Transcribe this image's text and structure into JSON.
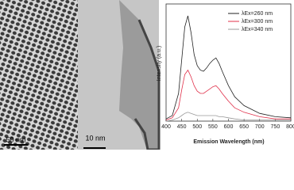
{
  "images": [
    {
      "scale_label": "50 nm"
    },
    {
      "scale_label": "10 nm"
    }
  ],
  "chart_data": {
    "type": "line",
    "xlabel": "Emission Wavelength (nm)",
    "ylabel": "Intensity (a.u.)",
    "x": [
      400,
      420,
      440,
      450,
      460,
      470,
      480,
      490,
      500,
      510,
      520,
      530,
      540,
      550,
      560,
      570,
      580,
      600,
      620,
      650,
      700,
      750,
      800
    ],
    "series": [
      {
        "name": "λEx=260 nm",
        "color": "#222222",
        "values": [
          2,
          5,
          25,
          55,
          85,
          95,
          80,
          60,
          50,
          46,
          45,
          48,
          52,
          55,
          57,
          52,
          45,
          32,
          22,
          14,
          7,
          4,
          3
        ]
      },
      {
        "name": "λEx=300 nm",
        "color": "#e0304a",
        "values": [
          1,
          3,
          12,
          28,
          42,
          46,
          40,
          32,
          27,
          25,
          25,
          27,
          29,
          31,
          32,
          29,
          25,
          18,
          12,
          8,
          4,
          2,
          2
        ]
      },
      {
        "name": "λEx=340 nm",
        "color": "#9a9a9a",
        "values": [
          0,
          1,
          3,
          5,
          7,
          8,
          7,
          6,
          5,
          5,
          5,
          5,
          5,
          5,
          5,
          4,
          4,
          3,
          2,
          1,
          1,
          1,
          1
        ]
      }
    ],
    "xlim": [
      400,
      800
    ],
    "xticks": [
      400,
      450,
      500,
      550,
      600,
      650,
      700,
      750,
      800
    ],
    "ylim": [
      0,
      100
    ],
    "legend": "upper right"
  }
}
